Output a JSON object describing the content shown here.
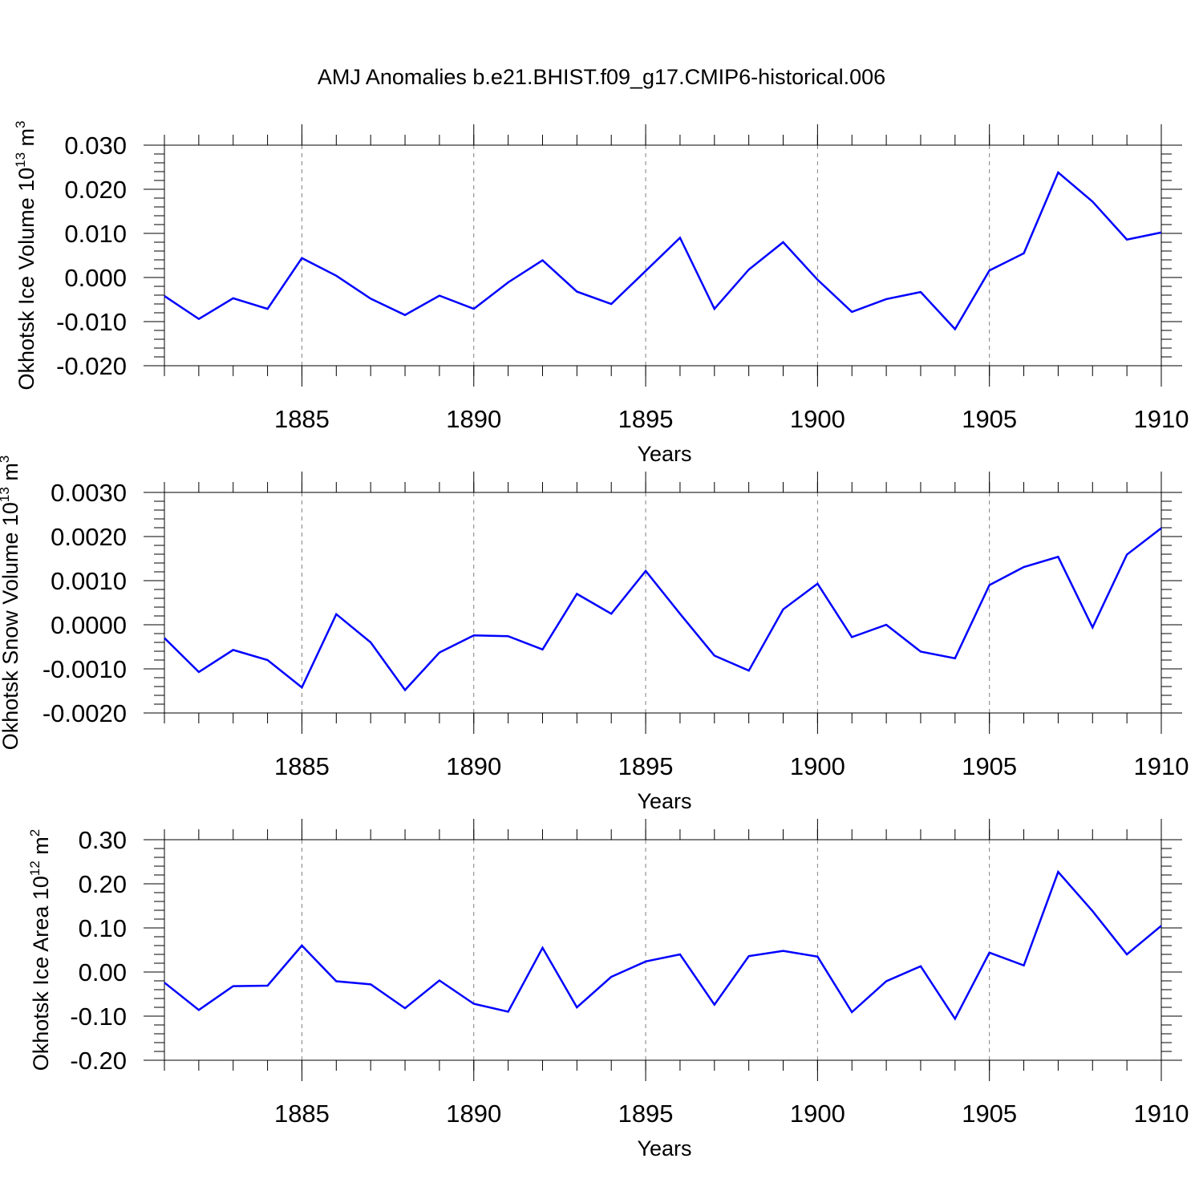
{
  "title": "AMJ Anomalies b.e21.BHIST.f09_g17.CMIP6-historical.006",
  "colors": {
    "series": "#0000ff",
    "axis": "#000000",
    "grid": "#808080"
  },
  "chart_data": [
    {
      "type": "line",
      "title": "AMJ Anomalies b.e21.BHIST.f09_g17.CMIP6-historical.006",
      "xlabel": "Years",
      "ylabel": {
        "base": "Okhotsk Ice Volume 10",
        "exp": "13",
        "unit": " m",
        "unit_exp": "3"
      },
      "xlim": [
        1881,
        1910
      ],
      "ylim": [
        -0.02,
        0.03
      ],
      "xticks": [
        1885,
        1890,
        1895,
        1900,
        1905,
        1910
      ],
      "yticks": [
        "-0.020",
        "-0.010",
        "0.000",
        "0.010",
        "0.020",
        "0.030"
      ],
      "yticks_values": [
        -0.02,
        -0.01,
        0.0,
        0.01,
        0.02,
        0.03
      ],
      "grid": "vertical-dashed",
      "x": [
        1881,
        1882,
        1883,
        1884,
        1885,
        1886,
        1887,
        1888,
        1889,
        1890,
        1891,
        1892,
        1893,
        1894,
        1895,
        1896,
        1897,
        1898,
        1899,
        1900,
        1901,
        1902,
        1903,
        1904,
        1905,
        1906,
        1907,
        1908,
        1909,
        1910
      ],
      "values": [
        -0.0042,
        -0.0094,
        -0.0047,
        -0.0071,
        0.0044,
        0.0004,
        -0.0048,
        -0.0085,
        -0.0041,
        -0.0071,
        -0.0011,
        0.0039,
        -0.0032,
        -0.006,
        0.0015,
        0.009,
        -0.0071,
        0.0018,
        0.008,
        -0.0005,
        -0.0078,
        -0.0049,
        -0.0033,
        -0.0117,
        0.0016,
        0.0055,
        0.0238,
        0.0172,
        0.0086,
        0.0102
      ]
    },
    {
      "type": "line",
      "xlabel": "Years",
      "ylabel": {
        "base": "Okhotsk Snow Volume 10",
        "exp": "13",
        "unit": " m",
        "unit_exp": "3"
      },
      "xlim": [
        1881,
        1910
      ],
      "ylim": [
        -0.002,
        0.003
      ],
      "xticks": [
        1885,
        1890,
        1895,
        1900,
        1905,
        1910
      ],
      "yticks": [
        "-0.0020",
        "-0.0010",
        "0.0000",
        "0.0010",
        "0.0020",
        "0.0030"
      ],
      "yticks_values": [
        -0.002,
        -0.001,
        0.0,
        0.001,
        0.002,
        0.003
      ],
      "grid": "vertical-dashed",
      "x": [
        1881,
        1882,
        1883,
        1884,
        1885,
        1886,
        1887,
        1888,
        1889,
        1890,
        1891,
        1892,
        1893,
        1894,
        1895,
        1896,
        1897,
        1898,
        1899,
        1900,
        1901,
        1902,
        1903,
        1904,
        1905,
        1906,
        1907,
        1908,
        1909,
        1910
      ],
      "values": [
        -0.0003,
        -0.00107,
        -0.00057,
        -0.0008,
        -0.00142,
        0.00024,
        -0.0004,
        -0.00148,
        -0.00063,
        -0.00024,
        -0.00026,
        -0.00056,
        0.0007,
        0.00025,
        0.00122,
        0.00025,
        -0.0007,
        -0.00104,
        0.00035,
        0.00093,
        -0.00028,
        0.0,
        -0.00061,
        -0.00076,
        0.0009,
        0.00131,
        0.00154,
        -6e-05,
        0.00159,
        0.00219
      ]
    },
    {
      "type": "line",
      "xlabel": "Years",
      "ylabel": {
        "base": "Okhotsk Ice Area 10",
        "exp": "12",
        "unit": " m",
        "unit_exp": "2"
      },
      "xlim": [
        1881,
        1910
      ],
      "ylim": [
        -0.2,
        0.3
      ],
      "xticks": [
        1885,
        1890,
        1895,
        1900,
        1905,
        1910
      ],
      "yticks": [
        "-0.20",
        "-0.10",
        "0.00",
        "0.10",
        "0.20",
        "0.30"
      ],
      "yticks_values": [
        -0.2,
        -0.1,
        0.0,
        0.1,
        0.2,
        0.3
      ],
      "grid": "vertical-dashed",
      "x": [
        1881,
        1882,
        1883,
        1884,
        1885,
        1886,
        1887,
        1888,
        1889,
        1890,
        1891,
        1892,
        1893,
        1894,
        1895,
        1896,
        1897,
        1898,
        1899,
        1900,
        1901,
        1902,
        1903,
        1904,
        1905,
        1906,
        1907,
        1908,
        1909,
        1910
      ],
      "values": [
        -0.024,
        -0.086,
        -0.032,
        -0.031,
        0.06,
        -0.021,
        -0.028,
        -0.082,
        -0.019,
        -0.072,
        -0.09,
        0.055,
        -0.08,
        -0.011,
        0.024,
        0.04,
        -0.074,
        0.036,
        0.048,
        0.035,
        -0.091,
        -0.021,
        0.013,
        -0.106,
        0.044,
        0.015,
        0.227,
        0.138,
        0.04,
        0.105
      ]
    }
  ]
}
